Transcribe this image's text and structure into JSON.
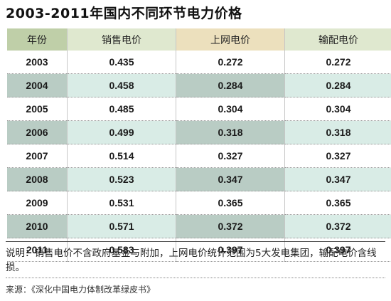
{
  "title": "2003-2011年国内不同环节电力价格",
  "chart_data": {
    "type": "table",
    "title": "2003-2011年国内不同环节电力价格",
    "columns": [
      "年份",
      "销售电价",
      "上网电价",
      "输配电价"
    ],
    "rows": [
      [
        "2003",
        "0.435",
        "0.272",
        "0.272"
      ],
      [
        "2004",
        "0.458",
        "0.284",
        "0.284"
      ],
      [
        "2005",
        "0.485",
        "0.304",
        "0.304"
      ],
      [
        "2006",
        "0.499",
        "0.318",
        "0.318"
      ],
      [
        "2007",
        "0.514",
        "0.327",
        "0.327"
      ],
      [
        "2008",
        "0.523",
        "0.347",
        "0.347"
      ],
      [
        "2009",
        "0.531",
        "0.365",
        "0.365"
      ],
      [
        "2010",
        "0.571",
        "0.372",
        "0.372"
      ],
      [
        "2011",
        "0.583",
        "0.397",
        "0.397"
      ]
    ]
  },
  "note": "说明：销售电价不含政府基金与附加，上网电价统计范围为5大发电集团，输配电价含线损。",
  "source": "来源：《深化中国电力体制改革绿皮书》",
  "colors": {
    "header_year": "#bfcfa8",
    "header_light": "#dfe8cf",
    "header_tan": "#ece0bd",
    "stripe_dark": "#b9ccc4",
    "stripe_light": "#d9ece6"
  }
}
